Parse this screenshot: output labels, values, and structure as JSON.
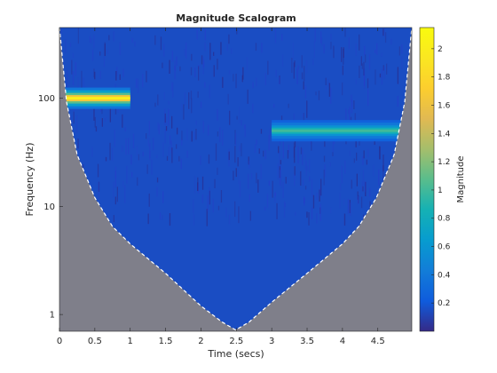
{
  "chart_data": {
    "type": "heatmap",
    "title": "Magnitude Scalogram",
    "xlabel": "Time (secs)",
    "ylabel": "Frequency (Hz)",
    "colorbar_label": "Magnitude",
    "xlim": [
      0,
      4.98
    ],
    "ylim": [
      0.7,
      450
    ],
    "yscale": "log",
    "x_ticks": [
      0,
      0.5,
      1,
      1.5,
      2,
      2.5,
      3,
      3.5,
      4,
      4.5
    ],
    "x_tick_labels": [
      "0",
      "0.5",
      "1",
      "1.5",
      "2",
      "2.5",
      "3",
      "3.5",
      "4",
      "4.5"
    ],
    "y_ticks": [
      1,
      10,
      100
    ],
    "y_tick_labels": [
      "1",
      "10",
      "100"
    ],
    "colorbar_range": [
      0,
      2.15
    ],
    "colorbar_ticks": [
      0.2,
      0.4,
      0.6,
      0.8,
      1,
      1.2,
      1.4,
      1.6,
      1.8,
      2
    ],
    "colorbar_tick_labels": [
      "0.2",
      "0.4",
      "0.6",
      "0.8",
      "1",
      "1.2",
      "1.4",
      "1.6",
      "1.8",
      "2"
    ],
    "colormap": "parula",
    "background_magnitude": 0.15,
    "components": [
      {
        "t_start": 0,
        "t_end": 1,
        "frequency_hz": 100,
        "magnitude": 2.0
      },
      {
        "t_start": 3,
        "t_end": 4.98,
        "frequency_hz": 50,
        "magnitude": 1.0
      }
    ],
    "cone_of_influence": {
      "style": "white dashed line, gray shaded outside",
      "shade_color": "#7f7f8a",
      "t": [
        0,
        0.02,
        0.1,
        0.25,
        0.5,
        0.75,
        1.0,
        1.5,
        2.0,
        2.3,
        2.49,
        2.68,
        3.0,
        3.5,
        4.0,
        4.23,
        4.48,
        4.73,
        4.88,
        4.96,
        4.98
      ],
      "f": [
        450,
        330,
        92,
        30,
        12,
        6.5,
        4.5,
        2.4,
        1.2,
        0.85,
        0.72,
        0.85,
        1.3,
        2.4,
        4.5,
        6.5,
        12,
        30,
        92,
        330,
        450
      ]
    }
  }
}
